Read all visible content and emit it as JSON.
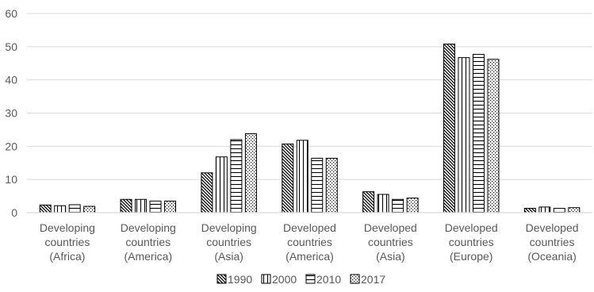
{
  "chart_data": {
    "type": "bar",
    "categories": [
      [
        "Developing",
        "countries",
        "(Africa)"
      ],
      [
        "Developing",
        "countries",
        "(America)"
      ],
      [
        "Developing",
        "countries",
        "(Asia)"
      ],
      [
        "Developed",
        "countries",
        "(America)"
      ],
      [
        "Developed",
        "countries",
        "(Asia)"
      ],
      [
        "Developed",
        "countries",
        "(Europe)"
      ],
      [
        "Developed",
        "countries",
        "(Oceania)"
      ]
    ],
    "series": [
      {
        "name": "1990",
        "pattern": "diagonal",
        "values": [
          2.3,
          4.0,
          12.0,
          20.7,
          6.3,
          50.8,
          1.3
        ]
      },
      {
        "name": "2000",
        "pattern": "vertical",
        "values": [
          2.1,
          4.0,
          16.8,
          21.8,
          5.5,
          46.7,
          1.7
        ]
      },
      {
        "name": "2010",
        "pattern": "horizontal",
        "values": [
          2.4,
          3.5,
          22.0,
          16.4,
          4.0,
          47.7,
          1.3
        ]
      },
      {
        "name": "2017",
        "pattern": "dots",
        "values": [
          1.9,
          3.5,
          23.8,
          16.4,
          4.4,
          46.2,
          1.5
        ]
      }
    ],
    "yticks": [
      "0",
      "10",
      "20",
      "30",
      "40",
      "50",
      "60"
    ],
    "ylim": [
      0,
      60
    ],
    "grid": true,
    "legend_position": "bottom",
    "title": "",
    "xlabel": "",
    "ylabel": "",
    "colors": {
      "bar_stroke": "#000000",
      "gridline": "#d9d9d9",
      "text": "#595959"
    }
  }
}
